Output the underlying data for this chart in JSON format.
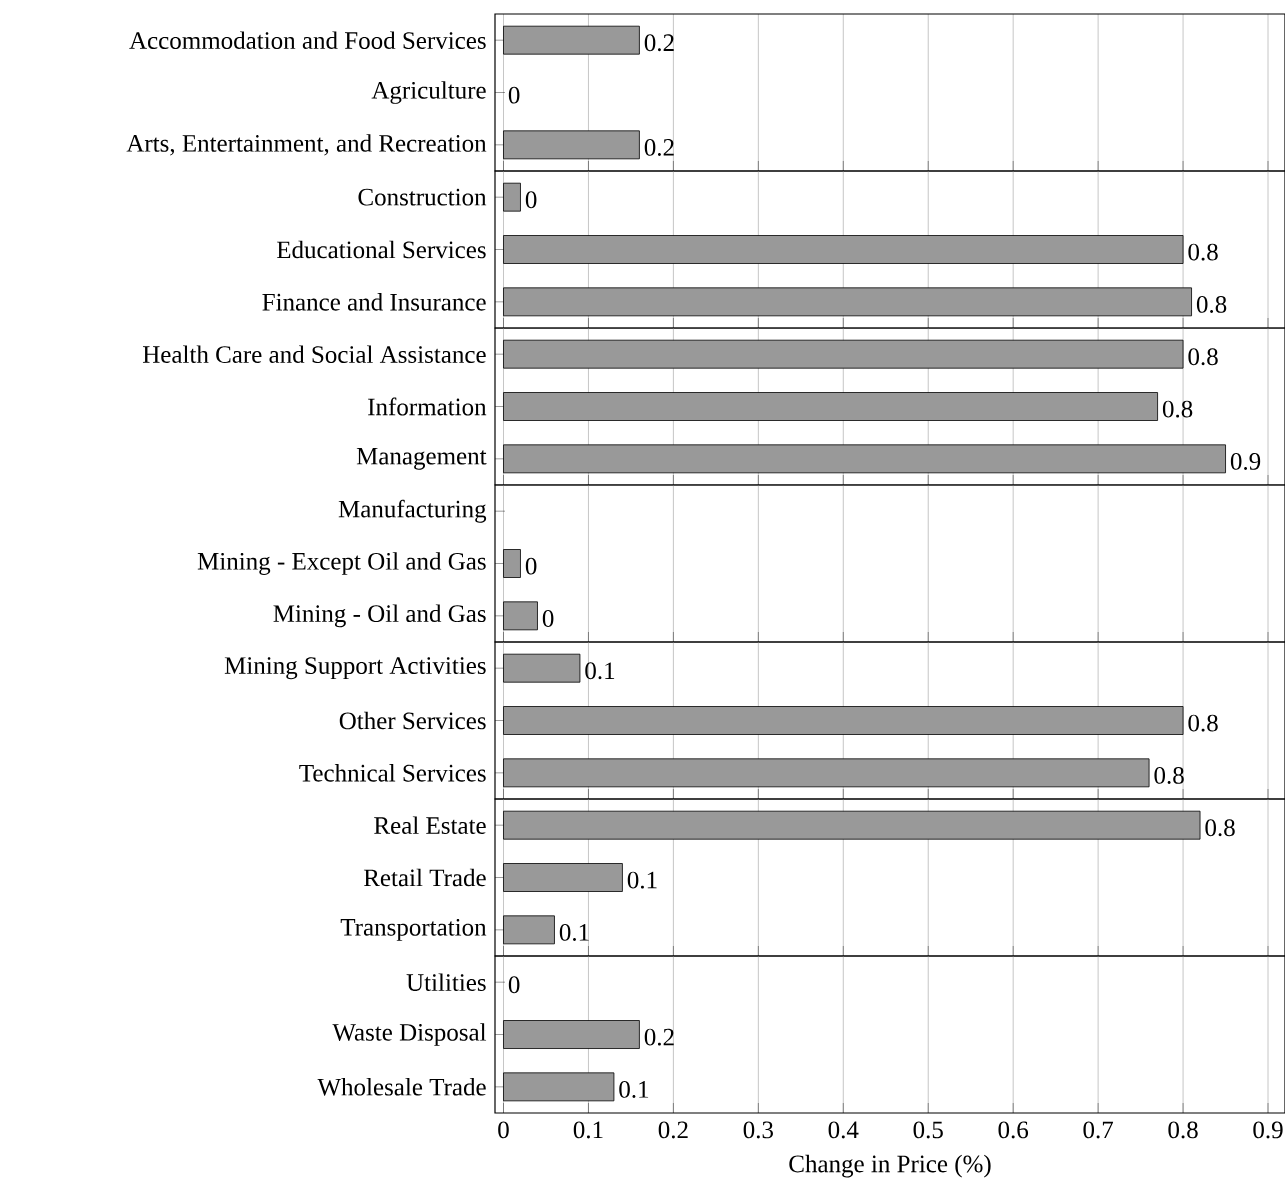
{
  "chart_data": [
    {
      "type": "bar",
      "orientation": "horizontal",
      "categories": [
        "Accommodation and Food Services",
        "Agriculture",
        "Arts, Entertainment, and Recreation"
      ],
      "values": [
        0.16,
        0,
        0.16
      ],
      "value_labels": [
        "0.2",
        "0",
        "0.2"
      ],
      "color": "#999999",
      "xlim": [
        -0.01,
        0.92
      ],
      "xticks": [
        0,
        0.1,
        0.2,
        0.3,
        0.4,
        0.5,
        0.6,
        0.7,
        0.8,
        0.9
      ],
      "grid": "x",
      "tick_labels": "y"
    },
    {
      "type": "bar",
      "orientation": "horizontal",
      "categories": [
        "Construction",
        "Educational Services",
        "Finance and Insurance"
      ],
      "values": [
        0.02,
        0.8,
        0.81
      ],
      "value_labels": [
        "0",
        "0.8",
        "0.8"
      ],
      "color": "#999999",
      "xlim": [
        -0.01,
        0.92
      ],
      "xticks": [
        0,
        0.1,
        0.2,
        0.3,
        0.4,
        0.5,
        0.6,
        0.7,
        0.8,
        0.9
      ],
      "grid": "x",
      "tick_labels": "y"
    },
    {
      "type": "bar",
      "orientation": "horizontal",
      "categories": [
        "Health Care and Social Assistance",
        "Information",
        "Management"
      ],
      "values": [
        0.8,
        0.77,
        0.85
      ],
      "value_labels": [
        "0.8",
        "0.8",
        "0.9"
      ],
      "color": "#999999",
      "xlim": [
        -0.01,
        0.92
      ],
      "xticks": [
        0,
        0.1,
        0.2,
        0.3,
        0.4,
        0.5,
        0.6,
        0.7,
        0.8,
        0.9
      ],
      "grid": "x",
      "tick_labels": "y"
    },
    {
      "type": "bar",
      "orientation": "horizontal",
      "categories": [
        "Manufacturing",
        "Mining - Except Oil and Gas",
        "Mining - Oil and Gas"
      ],
      "values": [
        null,
        0.02,
        0.04
      ],
      "value_labels": [
        null,
        "0",
        "0"
      ],
      "color": "#999999",
      "xlim": [
        -0.01,
        0.92
      ],
      "xticks": [
        0,
        0.1,
        0.2,
        0.3,
        0.4,
        0.5,
        0.6,
        0.7,
        0.8,
        0.9
      ],
      "grid": "x",
      "tick_labels": "y"
    },
    {
      "type": "bar",
      "orientation": "horizontal",
      "categories": [
        "Mining Support Activities",
        "Other Services",
        "Technical Services"
      ],
      "values": [
        0.09,
        0.8,
        0.76
      ],
      "value_labels": [
        "0.1",
        "0.8",
        "0.8"
      ],
      "color": "#999999",
      "xlim": [
        -0.01,
        0.92
      ],
      "xticks": [
        0,
        0.1,
        0.2,
        0.3,
        0.4,
        0.5,
        0.6,
        0.7,
        0.8,
        0.9
      ],
      "grid": "x",
      "tick_labels": "y"
    },
    {
      "type": "bar",
      "orientation": "horizontal",
      "categories": [
        "Real Estate",
        "Retail Trade",
        "Transportation"
      ],
      "values": [
        0.82,
        0.14,
        0.06
      ],
      "value_labels": [
        "0.8",
        "0.1",
        "0.1"
      ],
      "color": "#999999",
      "xlim": [
        -0.01,
        0.92
      ],
      "xticks": [
        0,
        0.1,
        0.2,
        0.3,
        0.4,
        0.5,
        0.6,
        0.7,
        0.8,
        0.9
      ],
      "grid": "x",
      "tick_labels": "y"
    },
    {
      "type": "bar",
      "orientation": "horizontal",
      "categories": [
        "Utilities",
        "Waste Disposal",
        "Wholesale Trade"
      ],
      "values": [
        0,
        0.16,
        0.13
      ],
      "value_labels": [
        "0",
        "0.2",
        "0.1"
      ],
      "color": "#999999",
      "xlim": [
        -0.01,
        0.92
      ],
      "xticks": [
        0,
        0.1,
        0.2,
        0.3,
        0.4,
        0.5,
        0.6,
        0.7,
        0.8,
        0.9
      ],
      "grid": "x",
      "xlabel": "Change in Price (%)"
    }
  ]
}
